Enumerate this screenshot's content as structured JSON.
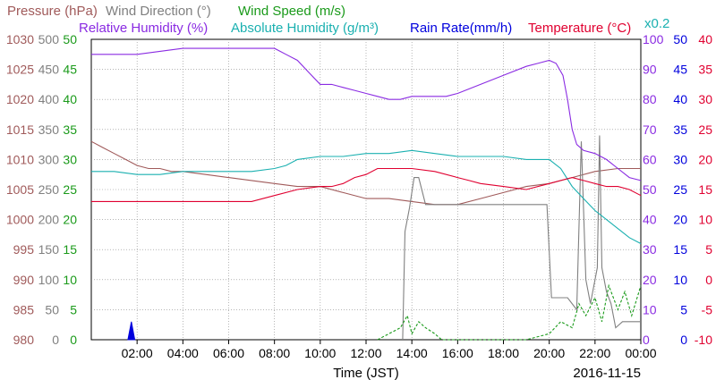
{
  "chart_data": {
    "type": "line",
    "date_label": "2016-11-15",
    "xlabel": "Time (JST)",
    "x_ticks": [
      "02:00",
      "04:00",
      "06:00",
      "08:00",
      "10:00",
      "12:00",
      "14:00",
      "16:00",
      "18:00",
      "20:00",
      "22:00",
      "00:00"
    ],
    "x_range_hours": [
      0,
      24
    ],
    "grid": true,
    "legend": [
      {
        "text": "Pressure (hPa)",
        "color": "#a05a5a"
      },
      {
        "text": "Wind Direction (°)",
        "color": "#808080"
      },
      {
        "text": "Wind Speed (m/s)",
        "color": "#1a9a1a"
      },
      {
        "text": "Relative Humidity (%)",
        "color": "#8a2be2"
      },
      {
        "text": "Absolute Humidity (g/m³)",
        "color": "#1ab0b0"
      },
      {
        "text": "Rain Rate(mm/h)",
        "color": "#0000dd"
      },
      {
        "text": "Temperature (°C)",
        "color": "#e00030"
      }
    ],
    "scale_note": "x0.2",
    "axes": {
      "pressure": {
        "ticks": [
          "1030",
          "1025",
          "1020",
          "1015",
          "1010",
          "1005",
          "1000",
          "995",
          "990",
          "985",
          "980"
        ],
        "range": [
          980,
          1030
        ],
        "color": "#a05a5a"
      },
      "wind_direction": {
        "ticks": [
          "500",
          "450",
          "400",
          "350",
          "300",
          "250",
          "200",
          "150",
          "100",
          "50",
          "0"
        ],
        "range": [
          0,
          500
        ],
        "color": "#808080"
      },
      "wind_speed": {
        "ticks": [
          "50",
          "45",
          "40",
          "35",
          "30",
          "25",
          "20",
          "15",
          "10",
          "5",
          "0"
        ],
        "range": [
          0,
          50
        ],
        "color": "#1a9a1a"
      },
      "humidity": {
        "ticks": [
          "100",
          "90",
          "80",
          "70",
          "60",
          "50",
          "40",
          "30",
          "20",
          "10",
          "0"
        ],
        "range": [
          0,
          100
        ],
        "color": "#8a2be2"
      },
      "rain_rate": {
        "ticks": [
          "50",
          "45",
          "40",
          "35",
          "30",
          "25",
          "20",
          "15",
          "10",
          "5",
          "0"
        ],
        "range": [
          0,
          50
        ],
        "color": "#0000dd"
      },
      "temperature": {
        "ticks": [
          "40",
          "35",
          "30",
          "25",
          "20",
          "15",
          "10",
          "5",
          "0",
          "-5",
          "-10"
        ],
        "range": [
          -10,
          40
        ],
        "color": "#e00030"
      }
    },
    "series": [
      {
        "name": "Pressure (hPa)",
        "axis": "pressure",
        "color": "#a05a5a",
        "x": [
          0,
          0.5,
          1,
          1.5,
          2,
          2.5,
          3,
          3.5,
          4,
          5,
          6,
          7,
          8,
          9,
          10,
          11,
          12,
          13,
          14,
          15,
          16,
          17,
          18,
          19,
          20,
          21,
          22,
          23,
          24
        ],
        "y": [
          1013,
          1012,
          1011,
          1010,
          1009,
          1008.5,
          1008.5,
          1008,
          1008,
          1007.5,
          1007,
          1006.5,
          1006,
          1005.5,
          1005.5,
          1004.5,
          1003.5,
          1003.5,
          1003,
          1002.5,
          1002.5,
          1003.5,
          1004.5,
          1005.5,
          1006,
          1007,
          1008,
          1008.5,
          1008.5
        ]
      },
      {
        "name": "Wind Direction (°)",
        "axis": "wind_direction",
        "color": "#808080",
        "x": [
          13.6,
          13.7,
          13.9,
          14.1,
          14.3,
          14.6,
          15,
          16,
          17,
          18,
          19,
          19.9,
          20.1,
          20.5,
          20.8,
          21.2,
          21.4,
          21.6,
          21.8,
          22.1,
          22.2,
          22.3,
          22.5,
          22.7,
          22.9,
          23.2,
          24
        ],
        "y": [
          0,
          180,
          220,
          270,
          270,
          225,
          225,
          225,
          225,
          225,
          225,
          225,
          70,
          70,
          70,
          50,
          330,
          100,
          60,
          120,
          340,
          120,
          80,
          60,
          20,
          30,
          30
        ]
      },
      {
        "name": "Wind Speed (m/s)",
        "axis": "wind_speed",
        "color": "#1a9a1a",
        "x": [
          12.5,
          13,
          13.5,
          13.8,
          14,
          14.3,
          14.6,
          15,
          15.3,
          16,
          19,
          20,
          20.5,
          21,
          21.3,
          21.6,
          22,
          22.3,
          22.6,
          23,
          23.3,
          23.6,
          24
        ],
        "y": [
          0,
          1,
          2,
          4,
          1,
          3,
          2,
          1,
          0,
          0,
          0,
          1,
          3,
          2,
          6,
          4,
          7,
          3,
          9,
          5,
          8,
          4,
          9
        ]
      },
      {
        "name": "Relative Humidity (%)",
        "axis": "humidity",
        "color": "#8a2be2",
        "x": [
          0,
          2,
          4,
          6,
          8,
          8.5,
          9,
          9.5,
          10,
          10.5,
          11,
          11.5,
          12,
          12.5,
          13,
          13.5,
          14,
          14.5,
          15,
          15.5,
          16,
          17,
          18,
          19,
          19.5,
          20,
          20.3,
          20.6,
          20.8,
          21,
          21.2,
          21.5,
          22,
          22.5,
          23,
          23.5,
          24
        ],
        "y": [
          95,
          95,
          97,
          97,
          97,
          95,
          93,
          89,
          85,
          85,
          84,
          83,
          82,
          81,
          80,
          80,
          81,
          81,
          81,
          81,
          82,
          85,
          88,
          91,
          92,
          93,
          92,
          88,
          80,
          70,
          65,
          63,
          62,
          60,
          57,
          54,
          53
        ]
      },
      {
        "name": "Absolute Humidity (g/m³)",
        "axis": "humidity",
        "color": "#1ab0b0",
        "x": [
          0,
          1,
          2,
          3,
          4,
          5,
          6,
          7,
          8,
          8.5,
          9,
          10,
          11,
          12,
          13,
          14,
          15,
          16,
          17,
          18,
          19,
          20,
          20.5,
          21,
          21.5,
          22,
          22.5,
          23,
          23.5,
          24
        ],
        "y": [
          56,
          56,
          55,
          55,
          56,
          56,
          56,
          56,
          57,
          58,
          60,
          61,
          61,
          62,
          62,
          63,
          62,
          61,
          61,
          61,
          60,
          60,
          57,
          51,
          47,
          43,
          40,
          37,
          34,
          32
        ]
      },
      {
        "name": "Rain Rate(mm/h)",
        "axis": "rain_rate",
        "color": "#0000dd",
        "x": [
          1.6,
          1.65,
          1.75,
          1.85,
          1.9
        ],
        "y": [
          0,
          1,
          3,
          1,
          0
        ]
      },
      {
        "name": "Temperature (°C)",
        "axis": "temperature",
        "color": "#e00030",
        "x": [
          0,
          1,
          2,
          3,
          4,
          5,
          6,
          7,
          8,
          9,
          10,
          10.5,
          11,
          11.5,
          12,
          12.5,
          13,
          14,
          15,
          16,
          16.5,
          17,
          18,
          19,
          20,
          20.5,
          21,
          21.5,
          22,
          22.5,
          23,
          23.5,
          24
        ],
        "y": [
          13,
          13,
          13,
          13,
          13,
          13,
          13,
          13,
          14,
          15,
          15.5,
          15.5,
          16,
          17,
          17.5,
          18.5,
          18.5,
          18.5,
          18,
          17,
          16.5,
          16,
          15.5,
          15,
          16,
          16.5,
          17,
          16.5,
          16,
          15.5,
          15.5,
          15,
          14
        ]
      }
    ]
  }
}
